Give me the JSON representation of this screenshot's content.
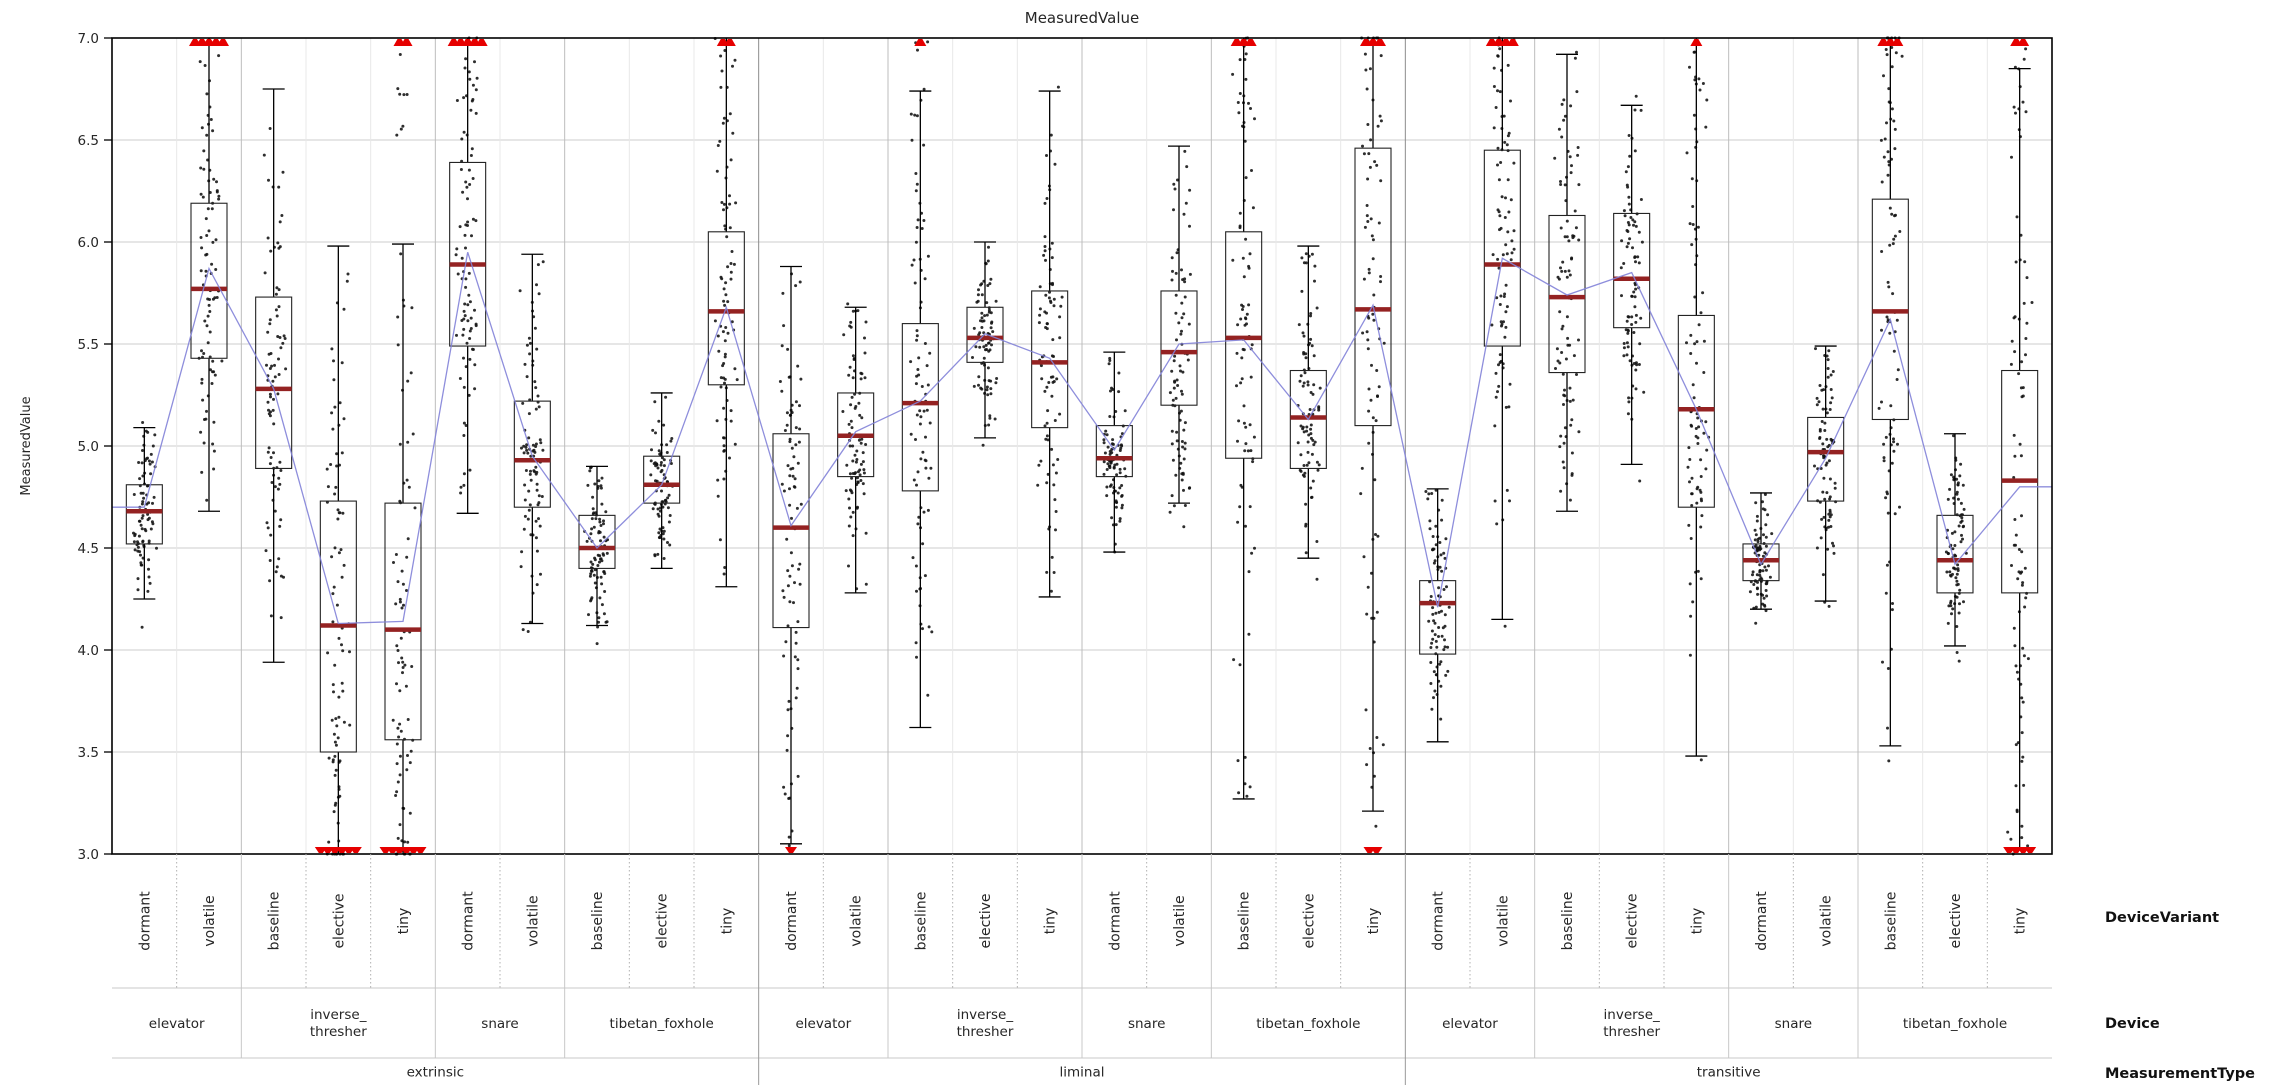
{
  "title": "MeasuredValue",
  "y_axis": {
    "label": "MeasuredValue",
    "min": 3.0,
    "max": 7.0,
    "ticks": [
      "7.0",
      "6.5",
      "6.0",
      "5.5",
      "5.0",
      "4.5",
      "4.0",
      "3.5",
      "3.0"
    ]
  },
  "row_labels": {
    "variant": "DeviceVariant",
    "device": "Device",
    "type": "MeasurementType"
  },
  "colors": {
    "median": "#942222",
    "outlier": "#e60000",
    "mean_line": "#8282d8",
    "box_stroke": "#222222",
    "point": "#111111",
    "grid_h": "#cccccc",
    "grid_slot": "#e8e8e8",
    "grid_device": "#bdbdbd",
    "grid_type": "#8c8c8c",
    "spine": "#000000",
    "label_sep_dotted": "#b0b0b0",
    "label_sep_line": "#c8c8c8"
  },
  "chart_data": {
    "type": "grouped_boxplot_with_jitter_and_mean_line",
    "title": "MeasuredValue",
    "ylabel": "MeasuredValue",
    "ylim": [
      3.0,
      7.0
    ],
    "grid": "both",
    "group_levels": [
      "MeasurementType",
      "Device",
      "DeviceVariant"
    ],
    "measurement_types": [
      {
        "label": "extrinsic",
        "devices": [
          {
            "label": "elevator",
            "variants": [
              {
                "label": "dormant",
                "q1": 4.52,
                "median": 4.68,
                "q3": 4.81,
                "whisker_low": 4.25,
                "whisker_high": 5.09,
                "mean": 4.7,
                "outliers_top": 0,
                "outliers_bottom": 0
              },
              {
                "label": "volatile",
                "q1": 5.43,
                "median": 5.77,
                "q3": 6.19,
                "whisker_low": 4.68,
                "whisker_high": 7.0,
                "mean": 5.87,
                "outliers_top": 5,
                "outliers_bottom": 0
              }
            ]
          },
          {
            "label": "inverse_thresher",
            "variants": [
              {
                "label": "baseline",
                "q1": 4.89,
                "median": 5.28,
                "q3": 5.73,
                "whisker_low": 3.94,
                "whisker_high": 6.75,
                "mean": 5.28,
                "outliers_top": 0,
                "outliers_bottom": 0
              },
              {
                "label": "elective",
                "q1": 3.5,
                "median": 4.12,
                "q3": 4.73,
                "whisker_low": 3.0,
                "whisker_high": 5.98,
                "mean": 4.13,
                "outliers_top": 0,
                "outliers_bottom": 6
              },
              {
                "label": "tiny",
                "q1": 3.56,
                "median": 4.1,
                "q3": 4.72,
                "whisker_low": 3.0,
                "whisker_high": 5.99,
                "mean": 4.14,
                "outliers_top": 2,
                "outliers_bottom": 6
              }
            ]
          },
          {
            "label": "snare",
            "variants": [
              {
                "label": "dormant",
                "q1": 5.49,
                "median": 5.89,
                "q3": 6.39,
                "whisker_low": 4.67,
                "whisker_high": 7.0,
                "mean": 5.95,
                "outliers_top": 5,
                "outliers_bottom": 0
              },
              {
                "label": "volatile",
                "q1": 4.7,
                "median": 4.93,
                "q3": 5.22,
                "whisker_low": 4.13,
                "whisker_high": 5.94,
                "mean": 4.95,
                "outliers_top": 0,
                "outliers_bottom": 0
              }
            ]
          },
          {
            "label": "tibetan_foxhole",
            "variants": [
              {
                "label": "baseline",
                "q1": 4.4,
                "median": 4.5,
                "q3": 4.66,
                "whisker_low": 4.12,
                "whisker_high": 4.9,
                "mean": 4.5,
                "outliers_top": 0,
                "outliers_bottom": 0
              },
              {
                "label": "elective",
                "q1": 4.72,
                "median": 4.81,
                "q3": 4.95,
                "whisker_low": 4.4,
                "whisker_high": 5.26,
                "mean": 4.81,
                "outliers_top": 0,
                "outliers_bottom": 0
              },
              {
                "label": "tiny",
                "q1": 5.3,
                "median": 5.66,
                "q3": 6.05,
                "whisker_low": 4.31,
                "whisker_high": 7.0,
                "mean": 5.68,
                "outliers_top": 2,
                "outliers_bottom": 0
              }
            ]
          }
        ]
      },
      {
        "label": "liminal",
        "devices": [
          {
            "label": "elevator",
            "variants": [
              {
                "label": "dormant",
                "q1": 4.11,
                "median": 4.6,
                "q3": 5.06,
                "whisker_low": 3.05,
                "whisker_high": 5.88,
                "mean": 4.61,
                "outliers_top": 0,
                "outliers_bottom": 1
              },
              {
                "label": "volatile",
                "q1": 4.85,
                "median": 5.05,
                "q3": 5.26,
                "whisker_low": 4.28,
                "whisker_high": 5.68,
                "mean": 5.07,
                "outliers_top": 0,
                "outliers_bottom": 0
              }
            ]
          },
          {
            "label": "inverse_thresher",
            "variants": [
              {
                "label": "baseline",
                "q1": 4.78,
                "median": 5.21,
                "q3": 5.6,
                "whisker_low": 3.62,
                "whisker_high": 6.74,
                "mean": 5.22,
                "outliers_top": 1,
                "outliers_bottom": 0
              },
              {
                "label": "elective",
                "q1": 5.41,
                "median": 5.53,
                "q3": 5.68,
                "whisker_low": 5.04,
                "whisker_high": 6.0,
                "mean": 5.55,
                "outliers_top": 0,
                "outliers_bottom": 0
              },
              {
                "label": "tiny",
                "q1": 5.09,
                "median": 5.41,
                "q3": 5.76,
                "whisker_low": 4.26,
                "whisker_high": 6.74,
                "mean": 5.43,
                "outliers_top": 0,
                "outliers_bottom": 0
              }
            ]
          },
          {
            "label": "snare",
            "variants": [
              {
                "label": "dormant",
                "q1": 4.85,
                "median": 4.94,
                "q3": 5.1,
                "whisker_low": 4.48,
                "whisker_high": 5.46,
                "mean": 4.98,
                "outliers_top": 0,
                "outliers_bottom": 0
              },
              {
                "label": "volatile",
                "q1": 5.2,
                "median": 5.46,
                "q3": 5.76,
                "whisker_low": 4.72,
                "whisker_high": 6.47,
                "mean": 5.5,
                "outliers_top": 0,
                "outliers_bottom": 0
              }
            ]
          },
          {
            "label": "tibetan_foxhole",
            "variants": [
              {
                "label": "baseline",
                "q1": 4.94,
                "median": 5.53,
                "q3": 6.05,
                "whisker_low": 3.27,
                "whisker_high": 7.0,
                "mean": 5.52,
                "outliers_top": 3,
                "outliers_bottom": 0
              },
              {
                "label": "elective",
                "q1": 4.89,
                "median": 5.14,
                "q3": 5.37,
                "whisker_low": 4.45,
                "whisker_high": 5.98,
                "mean": 5.13,
                "outliers_top": 0,
                "outliers_bottom": 0
              },
              {
                "label": "tiny",
                "q1": 5.1,
                "median": 5.67,
                "q3": 6.46,
                "whisker_low": 3.21,
                "whisker_high": 7.0,
                "mean": 5.69,
                "outliers_top": 3,
                "outliers_bottom": 2
              }
            ]
          }
        ]
      },
      {
        "label": "transitive",
        "devices": [
          {
            "label": "elevator",
            "variants": [
              {
                "label": "dormant",
                "q1": 3.98,
                "median": 4.23,
                "q3": 4.34,
                "whisker_low": 3.55,
                "whisker_high": 4.79,
                "mean": 4.21,
                "outliers_top": 0,
                "outliers_bottom": 0
              },
              {
                "label": "volatile",
                "q1": 5.49,
                "median": 5.89,
                "q3": 6.45,
                "whisker_low": 4.15,
                "whisker_high": 7.0,
                "mean": 5.92,
                "outliers_top": 4,
                "outliers_bottom": 0
              }
            ]
          },
          {
            "label": "inverse_thresher",
            "variants": [
              {
                "label": "baseline",
                "q1": 5.36,
                "median": 5.73,
                "q3": 6.13,
                "whisker_low": 4.68,
                "whisker_high": 6.92,
                "mean": 5.74,
                "outliers_top": 0,
                "outliers_bottom": 0
              },
              {
                "label": "elective",
                "q1": 5.58,
                "median": 5.82,
                "q3": 6.14,
                "whisker_low": 4.91,
                "whisker_high": 6.67,
                "mean": 5.85,
                "outliers_top": 0,
                "outliers_bottom": 0
              },
              {
                "label": "tiny",
                "q1": 4.7,
                "median": 5.18,
                "q3": 5.64,
                "whisker_low": 3.48,
                "whisker_high": 7.0,
                "mean": 5.18,
                "outliers_top": 1,
                "outliers_bottom": 0
              }
            ]
          },
          {
            "label": "snare",
            "variants": [
              {
                "label": "dormant",
                "q1": 4.34,
                "median": 4.44,
                "q3": 4.52,
                "whisker_low": 4.2,
                "whisker_high": 4.77,
                "mean": 4.42,
                "outliers_top": 0,
                "outliers_bottom": 0
              },
              {
                "label": "volatile",
                "q1": 4.73,
                "median": 4.97,
                "q3": 5.14,
                "whisker_low": 4.24,
                "whisker_high": 5.49,
                "mean": 4.94,
                "outliers_top": 0,
                "outliers_bottom": 0
              }
            ]
          },
          {
            "label": "tibetan_foxhole",
            "variants": [
              {
                "label": "baseline",
                "q1": 5.13,
                "median": 5.66,
                "q3": 6.21,
                "whisker_low": 3.53,
                "whisker_high": 7.0,
                "mean": 5.62,
                "outliers_top": 3,
                "outliers_bottom": 0
              },
              {
                "label": "elective",
                "q1": 4.28,
                "median": 4.44,
                "q3": 4.66,
                "whisker_low": 4.02,
                "whisker_high": 5.06,
                "mean": 4.42,
                "outliers_top": 0,
                "outliers_bottom": 0
              },
              {
                "label": "tiny",
                "q1": 4.28,
                "median": 4.83,
                "q3": 5.37,
                "whisker_low": 3.02,
                "whisker_high": 6.85,
                "mean": 4.8,
                "outliers_top": 2,
                "outliers_bottom": 4
              }
            ]
          }
        ]
      }
    ]
  }
}
